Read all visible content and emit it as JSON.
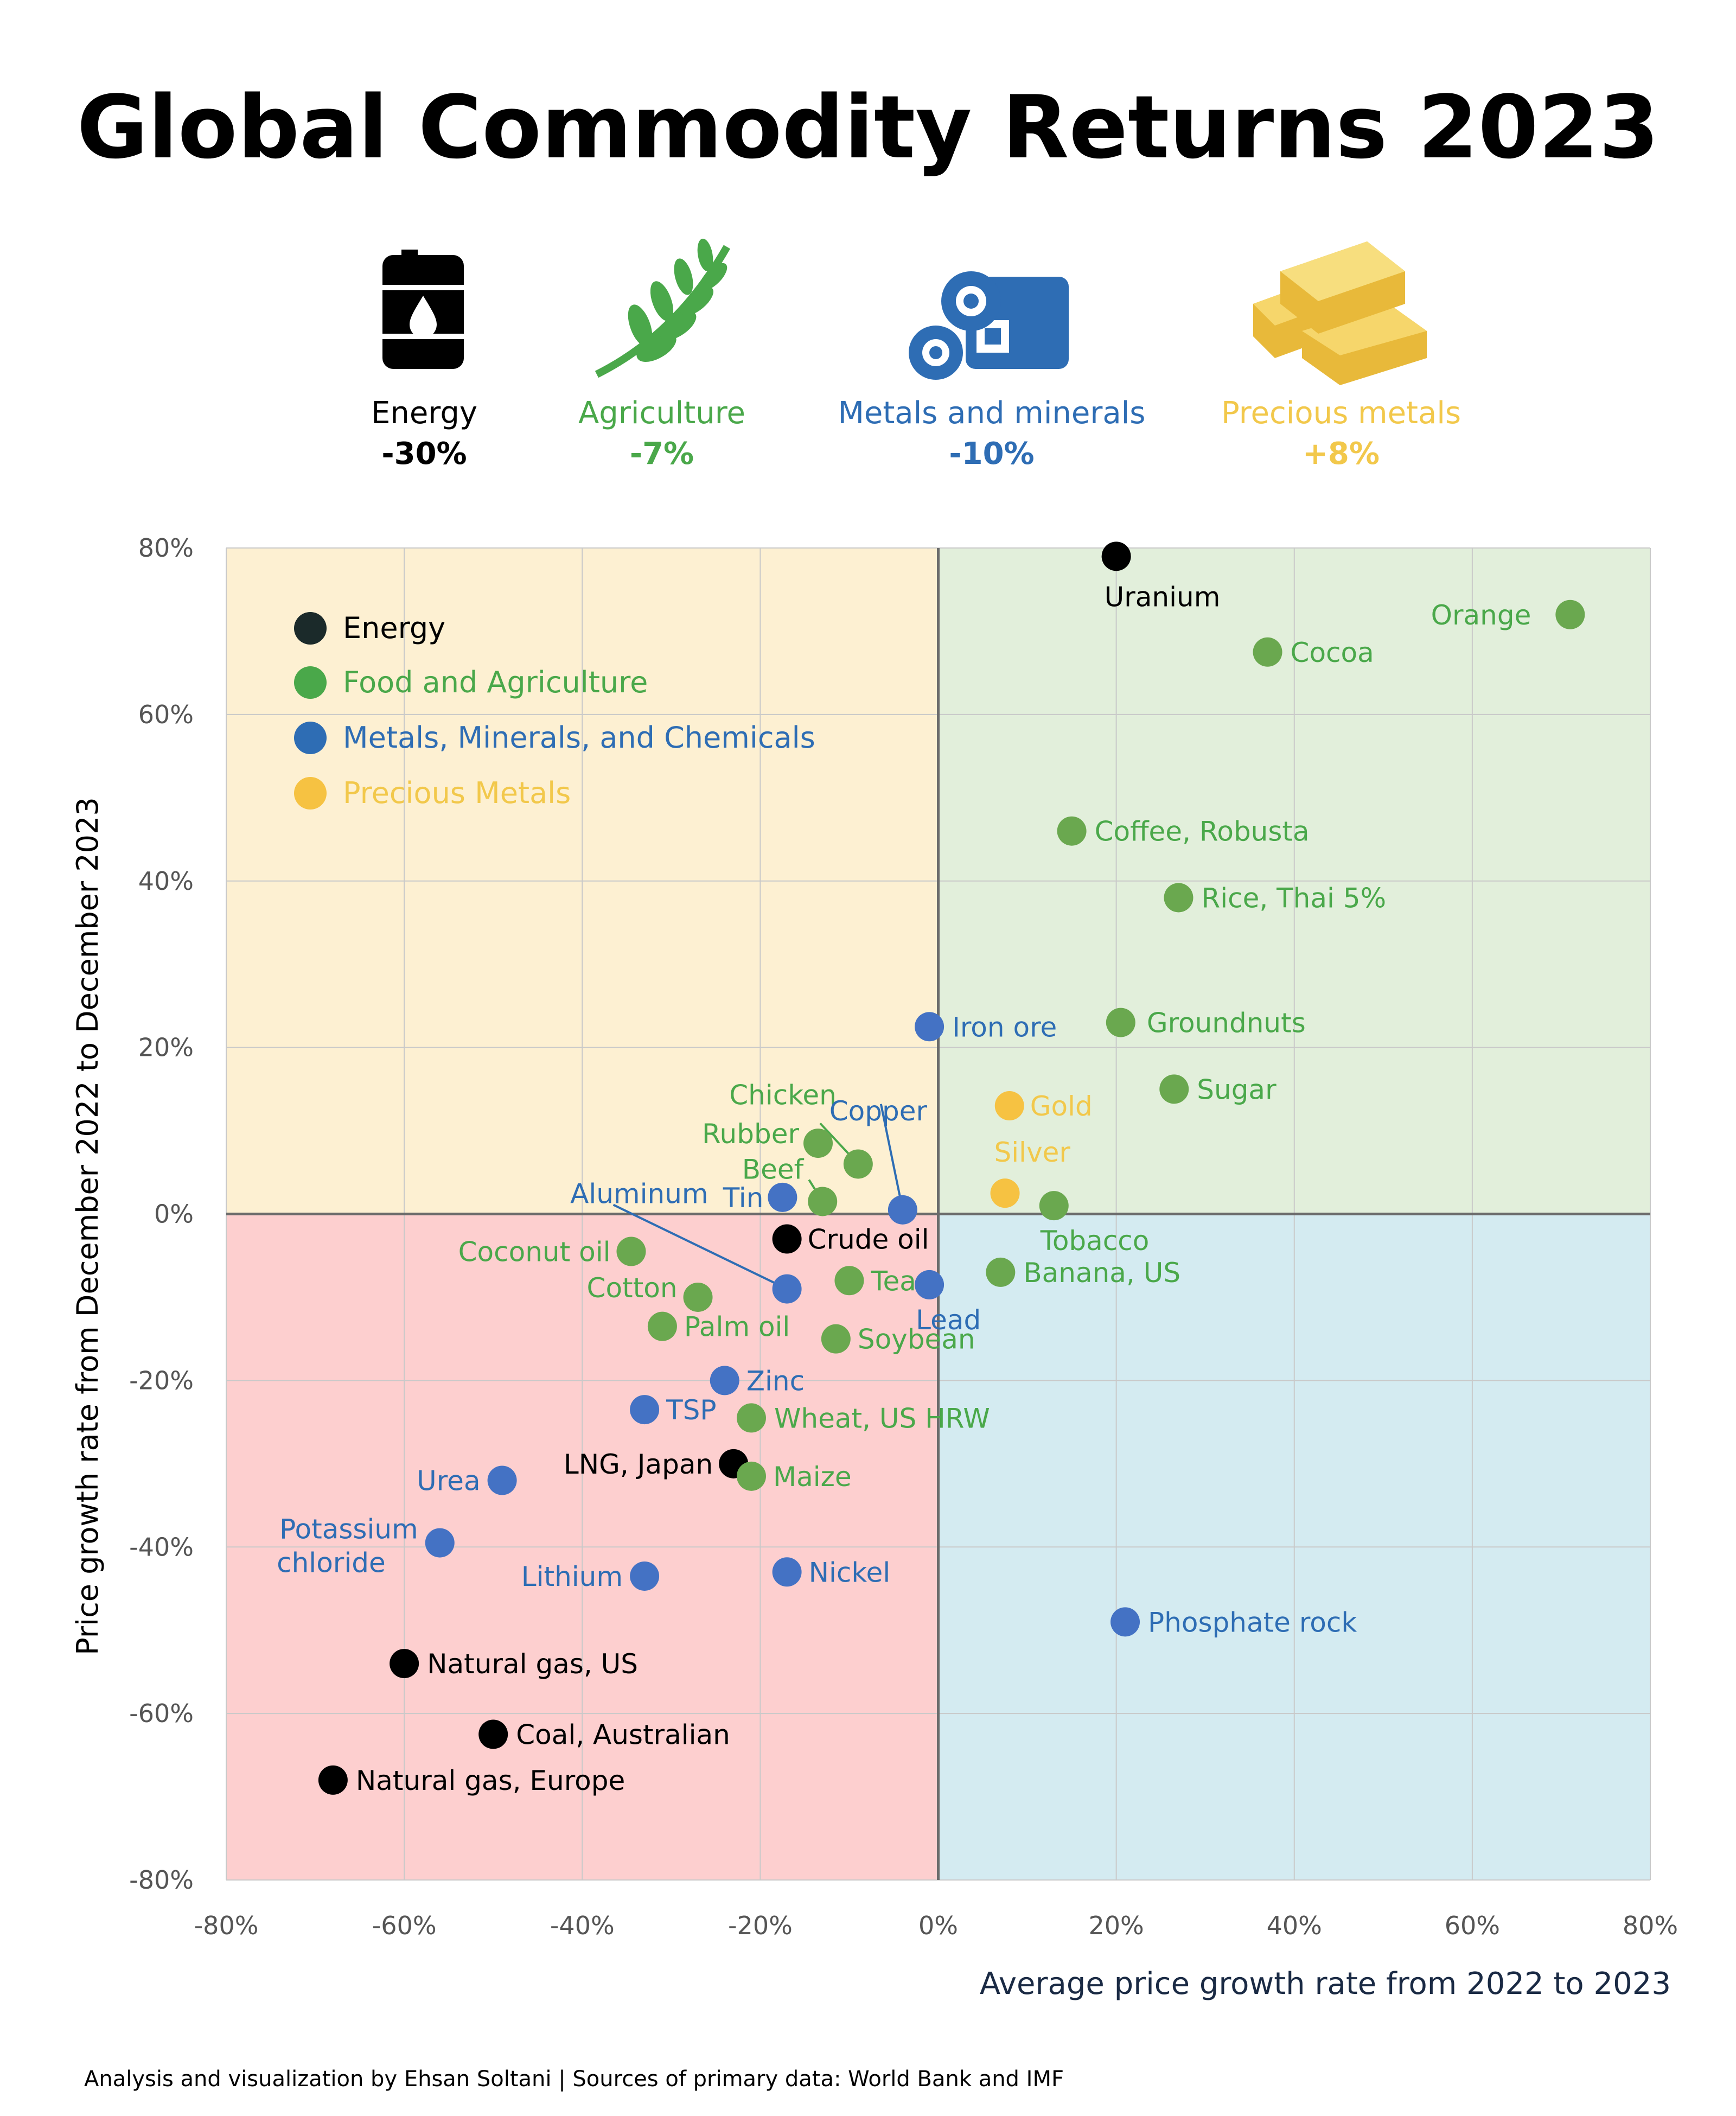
{
  "title": "Global Commodity Returns 2023",
  "categories_summary": [
    {
      "name": "Energy",
      "value": "-30%",
      "color": "#000000",
      "icon": "oil-barrel-icon"
    },
    {
      "name": "Agriculture",
      "value": "-7%",
      "color": "#4aa84a",
      "icon": "wheat-icon"
    },
    {
      "name": "Metals and minerals",
      "value": "-10%",
      "color": "#2e6db4",
      "icon": "metal-pipes-icon"
    },
    {
      "name": "Precious metals",
      "value": "+8%",
      "color": "#f2c84b",
      "icon": "gold-bars-icon"
    }
  ],
  "colors": {
    "energy": "#000000",
    "agriculture": "#6aa84f",
    "agriculture_label": "#4aa84a",
    "metals": "#4472c4",
    "metals_label": "#2e6db4",
    "precious": "#f6c242",
    "precious_label": "#f2c84b",
    "q_top_left": "#fdf0d2",
    "q_top_right": "#e2efdb",
    "q_bottom_left": "#fdcfcf",
    "q_bottom_right": "#d4ebf1"
  },
  "footer": "Analysis and visualization by Ehsan Soltani | Sources of primary data: World Bank and IMF",
  "chart_data": {
    "type": "scatter",
    "xlabel": "Average price growth rate from 2022 to 2023",
    "ylabel": "Price growth rate from December 2022 to December 2023",
    "xlim": [
      -80,
      80
    ],
    "ylim": [
      -80,
      80
    ],
    "x_ticks": [
      -80,
      -60,
      -40,
      -20,
      0,
      20,
      40,
      60,
      80
    ],
    "y_ticks": [
      -80,
      -60,
      -40,
      -20,
      0,
      20,
      40,
      60,
      80
    ],
    "x_tick_labels": [
      "-80%",
      "-60%",
      "-40%",
      "-20%",
      "0%",
      "20%",
      "40%",
      "60%",
      "80%"
    ],
    "y_tick_labels": [
      "-80%",
      "-60%",
      "-40%",
      "-20%",
      "0%",
      "20%",
      "40%",
      "60%",
      "80%"
    ],
    "grid": true,
    "legend": {
      "position": "top-left",
      "entries": [
        {
          "label": "Energy",
          "series": "energy"
        },
        {
          "label": "Food and Agriculture",
          "series": "agriculture"
        },
        {
          "label": "Metals, Minerals, and Chemicals",
          "series": "metals"
        },
        {
          "label": "Precious Metals",
          "series": "precious"
        }
      ]
    },
    "points": [
      {
        "name": "Uranium",
        "x": 20,
        "y": 79,
        "series": "energy"
      },
      {
        "name": "Crude oil",
        "x": -17,
        "y": -3,
        "series": "energy"
      },
      {
        "name": "LNG, Japan",
        "x": -23,
        "y": -30,
        "series": "energy"
      },
      {
        "name": "Natural gas, US",
        "x": -60,
        "y": -54,
        "series": "energy"
      },
      {
        "name": "Coal, Australian",
        "x": -50,
        "y": -62.5,
        "series": "energy"
      },
      {
        "name": "Natural gas, Europe",
        "x": -68,
        "y": -68,
        "series": "energy"
      },
      {
        "name": "Orange",
        "x": 71,
        "y": 72,
        "series": "agriculture"
      },
      {
        "name": "Cocoa",
        "x": 37,
        "y": 67.5,
        "series": "agriculture"
      },
      {
        "name": "Coffee, Robusta",
        "x": 15,
        "y": 46,
        "series": "agriculture"
      },
      {
        "name": "Rice, Thai 5%",
        "x": 27,
        "y": 38,
        "series": "agriculture"
      },
      {
        "name": "Groundnuts",
        "x": 20.5,
        "y": 23,
        "series": "agriculture"
      },
      {
        "name": "Sugar",
        "x": 26.5,
        "y": 15,
        "series": "agriculture"
      },
      {
        "name": "Tobacco",
        "x": 13,
        "y": 1,
        "series": "agriculture"
      },
      {
        "name": "Banana, US",
        "x": 7,
        "y": -7,
        "series": "agriculture"
      },
      {
        "name": "Chicken",
        "x": -9,
        "y": 6,
        "series": "agriculture"
      },
      {
        "name": "Rubber",
        "x": -13.5,
        "y": 8.5,
        "series": "agriculture"
      },
      {
        "name": "Beef",
        "x": -13,
        "y": 1.5,
        "series": "agriculture"
      },
      {
        "name": "Coconut oil",
        "x": -34.5,
        "y": -4.5,
        "series": "agriculture"
      },
      {
        "name": "Cotton",
        "x": -27,
        "y": -10,
        "series": "agriculture"
      },
      {
        "name": "Palm oil",
        "x": -31,
        "y": -13.5,
        "series": "agriculture"
      },
      {
        "name": "Tea",
        "x": -10,
        "y": -8,
        "series": "agriculture"
      },
      {
        "name": "Soybean",
        "x": -11.5,
        "y": -15,
        "series": "agriculture"
      },
      {
        "name": "Wheat, US HRW",
        "x": -21,
        "y": -24.5,
        "series": "agriculture"
      },
      {
        "name": "Maize",
        "x": -21,
        "y": -31.5,
        "series": "agriculture"
      },
      {
        "name": "Iron ore",
        "x": -1,
        "y": 22.5,
        "series": "metals"
      },
      {
        "name": "Copper",
        "x": -4,
        "y": 0.5,
        "series": "metals"
      },
      {
        "name": "Tin",
        "x": -17.5,
        "y": 2,
        "series": "metals"
      },
      {
        "name": "Aluminum",
        "x": -17,
        "y": -9,
        "series": "metals"
      },
      {
        "name": "Lead",
        "x": -1,
        "y": -8.5,
        "series": "metals"
      },
      {
        "name": "Zinc",
        "x": -24,
        "y": -20,
        "series": "metals"
      },
      {
        "name": "TSP",
        "x": -33,
        "y": -23.5,
        "series": "metals"
      },
      {
        "name": "Urea",
        "x": -49,
        "y": -32,
        "series": "metals"
      },
      {
        "name": "Potassium chloride",
        "x": -56,
        "y": -39.5,
        "series": "metals"
      },
      {
        "name": "Lithium",
        "x": -33,
        "y": -43.5,
        "series": "metals"
      },
      {
        "name": "Nickel",
        "x": -17,
        "y": -43,
        "series": "metals"
      },
      {
        "name": "Phosphate rock",
        "x": 21,
        "y": -49,
        "series": "metals"
      },
      {
        "name": "Gold",
        "x": 8,
        "y": 13,
        "series": "precious"
      },
      {
        "name": "Silver",
        "x": 7.5,
        "y": 2.5,
        "series": "precious"
      }
    ]
  }
}
